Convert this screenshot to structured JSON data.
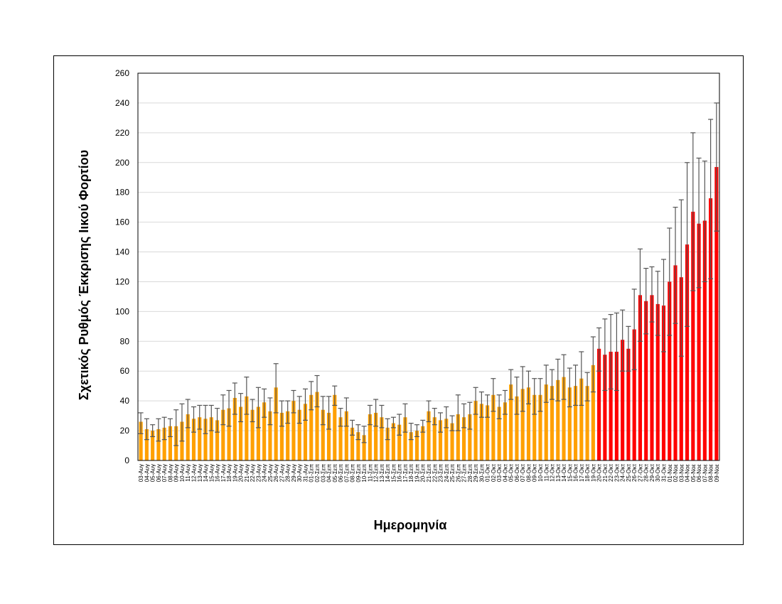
{
  "chart_data": {
    "type": "bar",
    "title": "",
    "xlabel": "Ημερομηνία",
    "ylabel": "Σχετικός Ρυθμός Έκκρισης Ιικού Φορτίου",
    "ylim": [
      0,
      260
    ],
    "yticks": [
      0,
      20,
      40,
      60,
      80,
      100,
      120,
      140,
      160,
      180,
      200,
      220,
      240,
      260
    ],
    "grid": true,
    "legend": "none",
    "colors": {
      "before": "#FFA000",
      "after": "#FF0000",
      "error": "#555555"
    },
    "red_from": "20-Οκτ",
    "categories": [
      "03-Αυγ",
      "04-Αυγ",
      "05-Αυγ",
      "06-Αυγ",
      "07-Αυγ",
      "08-Αυγ",
      "09-Αυγ",
      "10-Αυγ",
      "11-Αυγ",
      "12-Αυγ",
      "13-Αυγ",
      "14-Αυγ",
      "15-Αυγ",
      "16-Αυγ",
      "17-Αυγ",
      "18-Αυγ",
      "19-Αυγ",
      "20-Αυγ",
      "21-Αυγ",
      "22-Αυγ",
      "23-Αυγ",
      "24-Αυγ",
      "25-Αυγ",
      "26-Αυγ",
      "27-Αυγ",
      "28-Αυγ",
      "29-Αυγ",
      "30-Αυγ",
      "31-Αυγ",
      "01-Σεπ",
      "02-Σεπ",
      "03-Σεπ",
      "04-Σεπ",
      "05-Σεπ",
      "06-Σεπ",
      "07-Σεπ",
      "08-Σεπ",
      "09-Σεπ",
      "10-Σεπ",
      "11-Σεπ",
      "12-Σεπ",
      "13-Σεπ",
      "14-Σεπ",
      "15-Σεπ",
      "16-Σεπ",
      "17-Σεπ",
      "18-Σεπ",
      "19-Σεπ",
      "20-Σεπ",
      "21-Σεπ",
      "22-Σεπ",
      "23-Σεπ",
      "24-Σεπ",
      "25-Σεπ",
      "26-Σεπ",
      "27-Σεπ",
      "28-Σεπ",
      "29-Σεπ",
      "30-Σεπ",
      "01-Οκτ",
      "02-Οκτ",
      "03-Οκτ",
      "04-Οκτ",
      "05-Οκτ",
      "06-Οκτ",
      "07-Οκτ",
      "08-Οκτ",
      "09-Οκτ",
      "10-Οκτ",
      "11-Οκτ",
      "12-Οκτ",
      "13-Οκτ",
      "14-Οκτ",
      "15-Οκτ",
      "16-Οκτ",
      "17-Οκτ",
      "18-Οκτ",
      "19-Οκτ",
      "20-Οκτ",
      "21-Οκτ",
      "22-Οκτ",
      "23-Οκτ",
      "24-Οκτ",
      "25-Οκτ",
      "26-Οκτ",
      "27-Οκτ",
      "28-Οκτ",
      "29-Οκτ",
      "30-Οκτ",
      "31-Οκτ",
      "01-Νοε",
      "02-Νοε",
      "03-Νοε",
      "04-Νοε",
      "05-Νοε",
      "06-Νοε",
      "07-Νοε",
      "08-Νοε",
      "09-Νοε"
    ],
    "values": [
      26,
      21,
      20,
      21,
      22,
      23,
      23,
      26,
      31,
      28,
      29,
      28,
      29,
      27,
      34,
      35,
      42,
      36,
      43,
      34,
      36,
      39,
      33,
      49,
      32,
      33,
      40,
      34,
      38,
      44,
      46,
      34,
      32,
      44,
      29,
      33,
      22,
      19,
      17,
      31,
      32,
      29,
      22,
      25,
      24,
      29,
      19,
      20,
      23,
      33,
      29,
      27,
      28,
      25,
      31,
      29,
      31,
      40,
      38,
      37,
      44,
      36,
      39,
      51,
      43,
      48,
      49,
      44,
      44,
      51,
      50,
      54,
      56,
      49,
      50,
      55,
      50,
      64,
      75,
      71,
      73,
      73,
      81,
      75,
      88,
      111,
      107,
      111,
      105,
      104,
      120,
      131,
      123,
      145,
      167,
      159,
      161,
      176,
      197
    ],
    "error_low": [
      18,
      14,
      16,
      13,
      14,
      16,
      10,
      13,
      22,
      19,
      21,
      18,
      20,
      19,
      24,
      23,
      31,
      26,
      31,
      26,
      22,
      29,
      24,
      32,
      23,
      25,
      32,
      25,
      27,
      34,
      36,
      24,
      21,
      37,
      23,
      23,
      17,
      14,
      12,
      24,
      23,
      22,
      14,
      22,
      17,
      19,
      14,
      16,
      19,
      26,
      24,
      19,
      22,
      20,
      20,
      22,
      21,
      31,
      29,
      29,
      33,
      28,
      31,
      41,
      31,
      33,
      38,
      31,
      33,
      39,
      41,
      40,
      41,
      36,
      37,
      37,
      40,
      46,
      60,
      47,
      48,
      47,
      60,
      60,
      61,
      80,
      85,
      93,
      84,
      73,
      84,
      92,
      70,
      90,
      114,
      116,
      120,
      122,
      154
    ],
    "error_high": [
      32,
      28,
      24,
      28,
      29,
      28,
      34,
      38,
      41,
      36,
      37,
      37,
      37,
      35,
      44,
      47,
      52,
      45,
      56,
      41,
      49,
      48,
      42,
      65,
      40,
      40,
      47,
      43,
      48,
      53,
      57,
      43,
      43,
      50,
      35,
      42,
      27,
      24,
      23,
      37,
      41,
      37,
      28,
      29,
      31,
      38,
      25,
      24,
      27,
      40,
      35,
      32,
      36,
      30,
      44,
      38,
      39,
      49,
      46,
      44,
      55,
      44,
      47,
      61,
      56,
      63,
      60,
      55,
      55,
      64,
      61,
      68,
      71,
      62,
      64,
      73,
      59,
      83,
      89,
      95,
      98,
      99,
      101,
      90,
      115,
      142,
      129,
      130,
      127,
      135,
      156,
      170,
      175,
      200,
      220,
      203,
      201,
      229,
      240
    ]
  }
}
